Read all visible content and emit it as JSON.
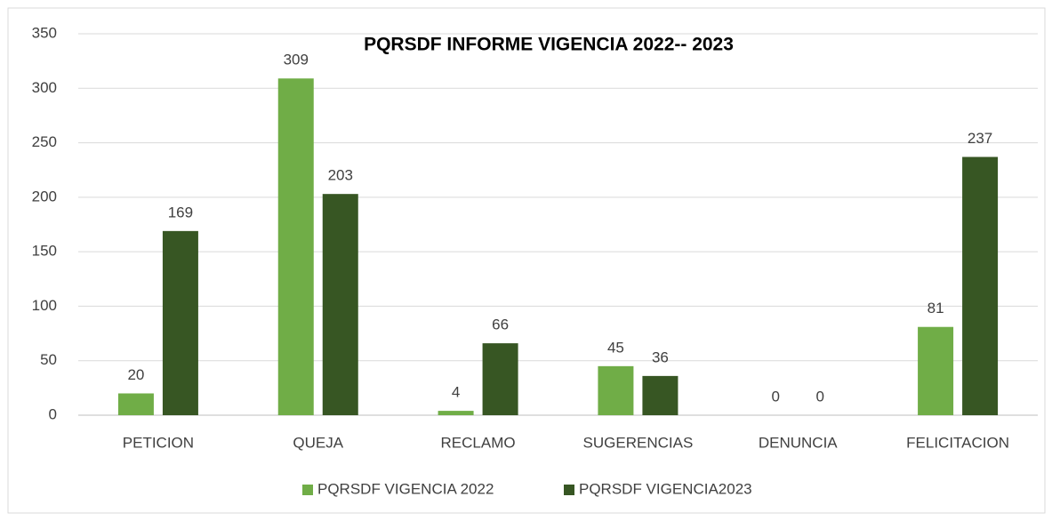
{
  "chart_data": {
    "type": "bar",
    "title": "PQRSDF INFORME VIGENCIA 2022-- 2023",
    "categories": [
      "PETICION",
      "QUEJA",
      "RECLAMO",
      "SUGERENCIAS",
      "DENUNCIA",
      "FELICITACION"
    ],
    "series": [
      {
        "name": "PQRSDF VIGENCIA 2022",
        "color": "#70ad47",
        "values": [
          20,
          309,
          4,
          45,
          0,
          81
        ]
      },
      {
        "name": "PQRSDF VIGENCIA2023",
        "color": "#375623",
        "values": [
          169,
          203,
          66,
          36,
          0,
          237
        ]
      }
    ],
    "ylim": [
      0,
      350
    ],
    "yticks": [
      0,
      50,
      100,
      150,
      200,
      250,
      300,
      350
    ],
    "grid": true,
    "legend": "bottom"
  }
}
